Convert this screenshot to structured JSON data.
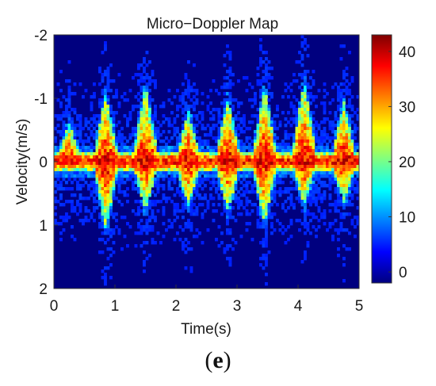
{
  "chart_data": {
    "type": "heatmap",
    "title": "Micro−Doppler Map",
    "xlabel": "Time(s)",
    "ylabel": "Velocity(m/s)",
    "xlim": [
      0,
      5
    ],
    "ylim": [
      -2,
      2
    ],
    "y_reversed": true,
    "x_ticks": [
      "0",
      "1",
      "2",
      "3",
      "4",
      "5"
    ],
    "y_ticks": [
      "-2",
      "-1",
      "0",
      "1",
      "2"
    ],
    "colorbar": {
      "range": [
        -2,
        43
      ],
      "ticks": [
        "0",
        "10",
        "20",
        "30",
        "40"
      ],
      "colormap": "jet"
    },
    "grid": false,
    "gait_cycles": [
      {
        "time": 0.25,
        "max_velocity": -0.6,
        "min_velocity": 0.0
      },
      {
        "time": 0.85,
        "max_velocity": -1.1,
        "min_velocity": 1.1
      },
      {
        "time": 1.5,
        "max_velocity": -1.2,
        "min_velocity": 0.8
      },
      {
        "time": 2.2,
        "max_velocity": -0.8,
        "min_velocity": 0.7
      },
      {
        "time": 2.85,
        "max_velocity": -1.0,
        "min_velocity": 0.8
      },
      {
        "time": 3.45,
        "max_velocity": -1.2,
        "min_velocity": 1.0
      },
      {
        "time": 4.1,
        "max_velocity": -1.3,
        "min_velocity": 0.7
      },
      {
        "time": 4.75,
        "max_velocity": -0.95,
        "min_velocity": 0.65
      }
    ]
  },
  "caption": {
    "open": "(",
    "letter": "e",
    "close": ")"
  }
}
